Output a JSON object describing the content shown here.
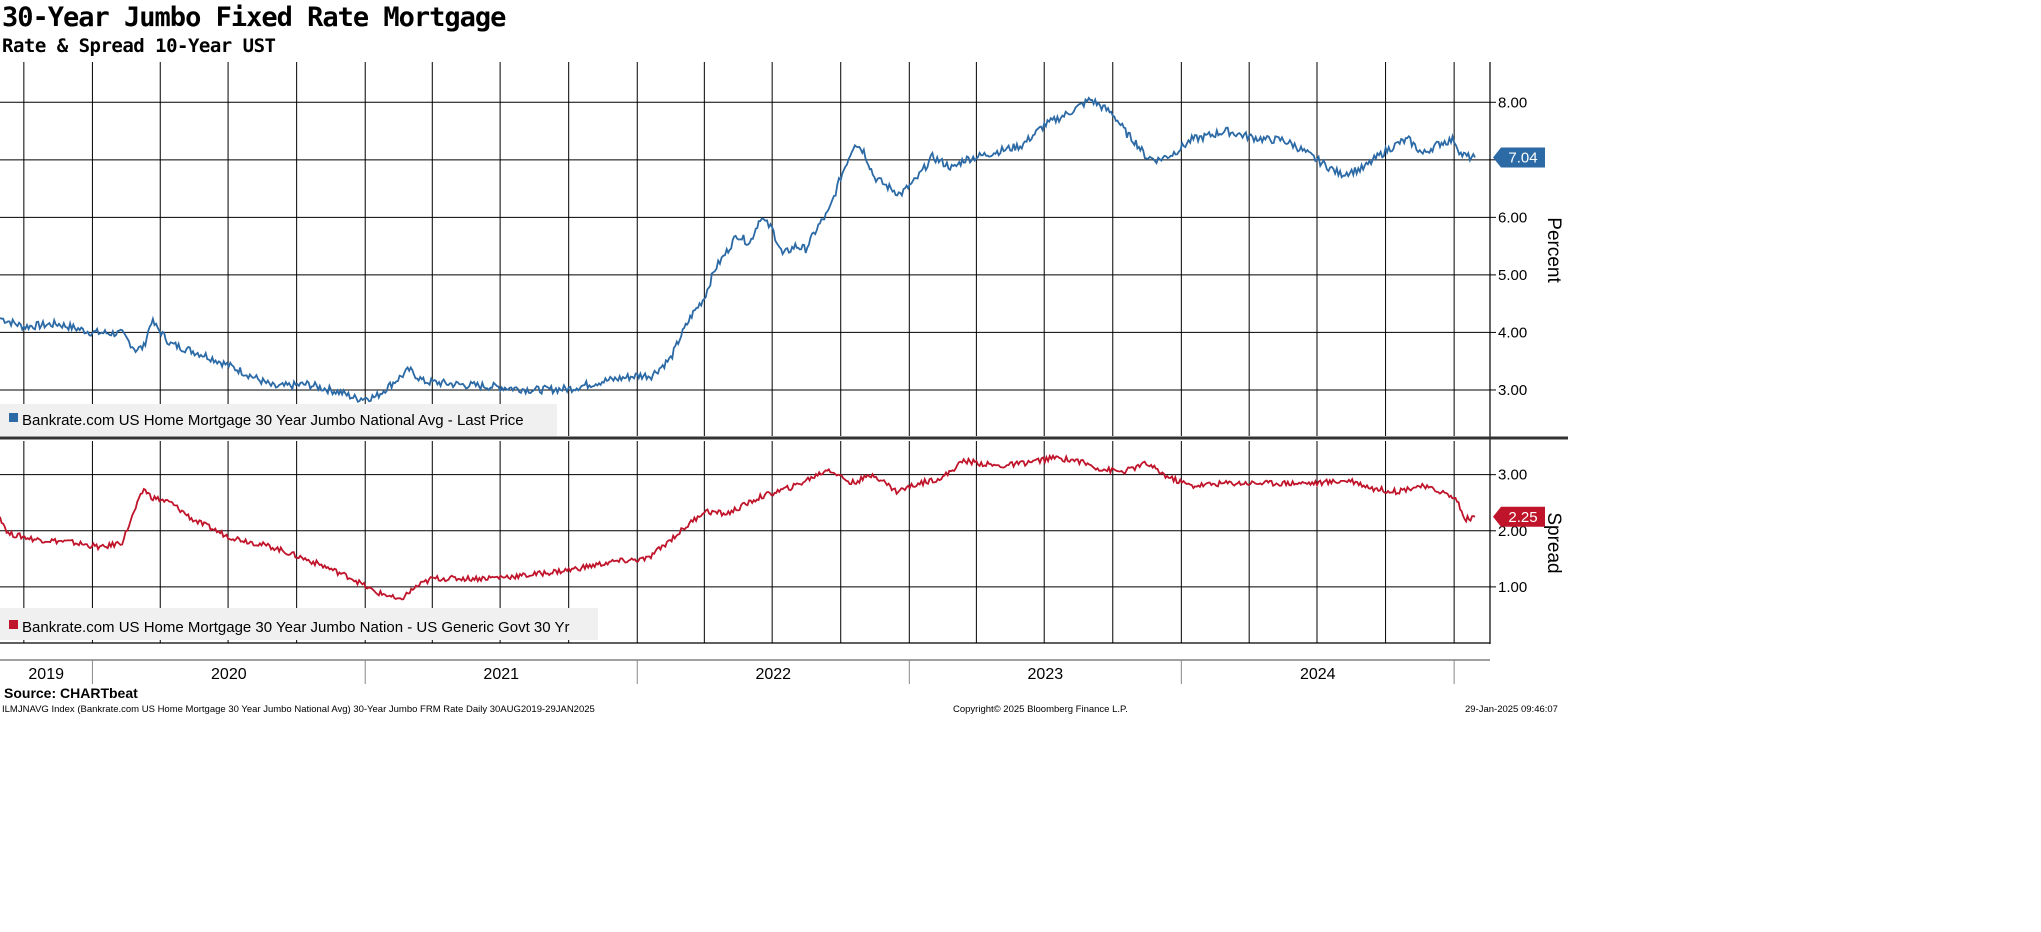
{
  "header": {
    "title": "30-Year Jumbo Fixed Rate Mortgage",
    "subtitle": "Rate & Spread 10-Year UST"
  },
  "footer": {
    "source": "Source: CHARTbeat",
    "index_line": "ILMJNAVG Index (Bankrate.com US Home Mortgage 30 Year Jumbo National Avg) 30-Year Jumbo FRM Rate  Daily 30AUG2019-29JAN2025",
    "copyright": "Copyright© 2025 Bloomberg Finance L.P.",
    "timestamp": "29-Jan-2025 09:46:07"
  },
  "x_axis": {
    "year_labels": [
      "2019",
      "2020",
      "2021",
      "2022",
      "2023",
      "2024"
    ]
  },
  "chart_data": [
    {
      "type": "line",
      "panel": "top",
      "ylabel": "Percent",
      "ylim": [
        2.2,
        8.7
      ],
      "yticks": [
        "3.00",
        "4.00",
        "5.00",
        "6.00",
        "7.00",
        "8.00"
      ],
      "xlim": [
        "2019-08-30",
        "2025-01-29"
      ],
      "grid": true,
      "legend_position": "bottom-left",
      "last_value_label": "7.04",
      "series": [
        {
          "name": "Bankrate.com US Home Mortgage 30 Year Jumbo National Avg - Last Price",
          "color": "#2c6aa6",
          "x": [
            "2019-08-30",
            "2019-10-01",
            "2019-11-15",
            "2020-01-01",
            "2020-02-10",
            "2020-02-28",
            "2020-03-10",
            "2020-03-20",
            "2020-04-15",
            "2020-06-01",
            "2020-07-15",
            "2020-09-01",
            "2020-10-15",
            "2020-12-01",
            "2020-12-20",
            "2021-01-15",
            "2021-03-01",
            "2021-03-20",
            "2021-05-01",
            "2021-07-01",
            "2021-08-15",
            "2021-10-01",
            "2021-11-15",
            "2022-01-01",
            "2022-01-20",
            "2022-02-15",
            "2022-03-01",
            "2022-03-15",
            "2022-04-01",
            "2022-04-15",
            "2022-05-01",
            "2022-05-15",
            "2022-06-01",
            "2022-06-15",
            "2022-07-01",
            "2022-07-15",
            "2022-08-01",
            "2022-08-15",
            "2022-09-01",
            "2022-09-15",
            "2022-10-01",
            "2022-10-20",
            "2022-11-01",
            "2022-11-15",
            "2022-12-01",
            "2022-12-20",
            "2023-01-10",
            "2023-02-01",
            "2023-03-01",
            "2023-03-15",
            "2023-04-01",
            "2023-05-01",
            "2023-06-01",
            "2023-07-01",
            "2023-08-01",
            "2023-09-01",
            "2023-10-01",
            "2023-10-20",
            "2023-11-01",
            "2023-11-15",
            "2023-12-01",
            "2023-12-20",
            "2024-01-15",
            "2024-02-01",
            "2024-03-01",
            "2024-04-01",
            "2024-04-25",
            "2024-05-15",
            "2024-06-01",
            "2024-07-01",
            "2024-08-01",
            "2024-09-01",
            "2024-09-20",
            "2024-10-01",
            "2024-10-20",
            "2024-11-01",
            "2024-11-20",
            "2024-12-01",
            "2024-12-15",
            "2025-01-01",
            "2025-01-10",
            "2025-01-20",
            "2025-01-29"
          ],
          "values": [
            4.25,
            4.1,
            4.15,
            4.0,
            3.98,
            3.7,
            3.75,
            4.2,
            3.8,
            3.6,
            3.35,
            3.05,
            3.1,
            2.95,
            2.85,
            2.88,
            3.35,
            3.15,
            3.1,
            3.05,
            3.0,
            3.02,
            3.15,
            3.25,
            3.25,
            3.55,
            3.95,
            4.3,
            4.6,
            5.1,
            5.4,
            5.7,
            5.55,
            6.0,
            5.8,
            5.35,
            5.5,
            5.45,
            5.85,
            6.1,
            6.7,
            7.3,
            7.15,
            6.7,
            6.55,
            6.4,
            6.65,
            7.05,
            6.85,
            7.0,
            7.05,
            7.15,
            7.25,
            7.6,
            7.8,
            8.05,
            7.8,
            7.45,
            7.3,
            7.05,
            7.0,
            7.1,
            7.35,
            7.4,
            7.5,
            7.4,
            7.35,
            7.35,
            7.25,
            7.0,
            6.75,
            6.85,
            7.05,
            7.15,
            7.3,
            7.35,
            7.1,
            7.2,
            7.3,
            7.35,
            7.1,
            7.05,
            7.04
          ]
        }
      ]
    },
    {
      "type": "line",
      "panel": "bottom",
      "ylabel": "Spread",
      "ylim": [
        0.0,
        3.6
      ],
      "yticks": [
        "1.00",
        "2.00",
        "3.00"
      ],
      "xlim": [
        "2019-08-30",
        "2025-01-29"
      ],
      "grid": true,
      "legend_position": "bottom-left",
      "last_value_label": "2.25",
      "series": [
        {
          "name": "Bankrate.com US Home Mortgage 30 Year Jumbo Nation - US Generic Govt 30 Yr",
          "color": "#c0142b",
          "x": [
            "2019-08-30",
            "2019-09-10",
            "2019-10-15",
            "2019-12-01",
            "2020-01-15",
            "2020-02-10",
            "2020-02-28",
            "2020-03-10",
            "2020-03-20",
            "2020-04-15",
            "2020-05-15",
            "2020-07-01",
            "2020-09-01",
            "2020-11-01",
            "2020-12-15",
            "2021-01-15",
            "2021-02-01",
            "2021-02-15",
            "2021-03-10",
            "2021-04-01",
            "2021-06-01",
            "2021-08-01",
            "2021-10-01",
            "2021-12-01",
            "2022-01-15",
            "2022-03-01",
            "2022-04-01",
            "2022-05-01",
            "2022-06-15",
            "2022-08-01",
            "2022-09-15",
            "2022-10-15",
            "2022-11-15",
            "2022-12-15",
            "2023-01-15",
            "2023-02-15",
            "2023-03-15",
            "2023-05-01",
            "2023-06-01",
            "2023-07-15",
            "2023-08-15",
            "2023-09-15",
            "2023-10-15",
            "2023-11-15",
            "2023-12-15",
            "2024-01-15",
            "2024-03-01",
            "2024-05-01",
            "2024-07-01",
            "2024-08-15",
            "2024-09-15",
            "2024-10-15",
            "2024-11-15",
            "2024-12-15",
            "2025-01-05",
            "2025-01-15",
            "2025-01-29"
          ],
          "values": [
            2.25,
            1.95,
            1.85,
            1.8,
            1.7,
            1.8,
            2.4,
            2.75,
            2.6,
            2.5,
            2.2,
            1.9,
            1.7,
            1.4,
            1.15,
            0.9,
            0.85,
            0.75,
            1.0,
            1.15,
            1.15,
            1.2,
            1.3,
            1.45,
            1.5,
            2.0,
            2.35,
            2.3,
            2.6,
            2.8,
            3.1,
            2.85,
            3.0,
            2.7,
            2.85,
            2.95,
            3.25,
            3.15,
            3.2,
            3.3,
            3.25,
            3.1,
            3.05,
            3.2,
            2.95,
            2.8,
            2.85,
            2.85,
            2.85,
            2.9,
            2.75,
            2.7,
            2.8,
            2.7,
            2.55,
            2.2,
            2.25
          ]
        }
      ]
    }
  ]
}
